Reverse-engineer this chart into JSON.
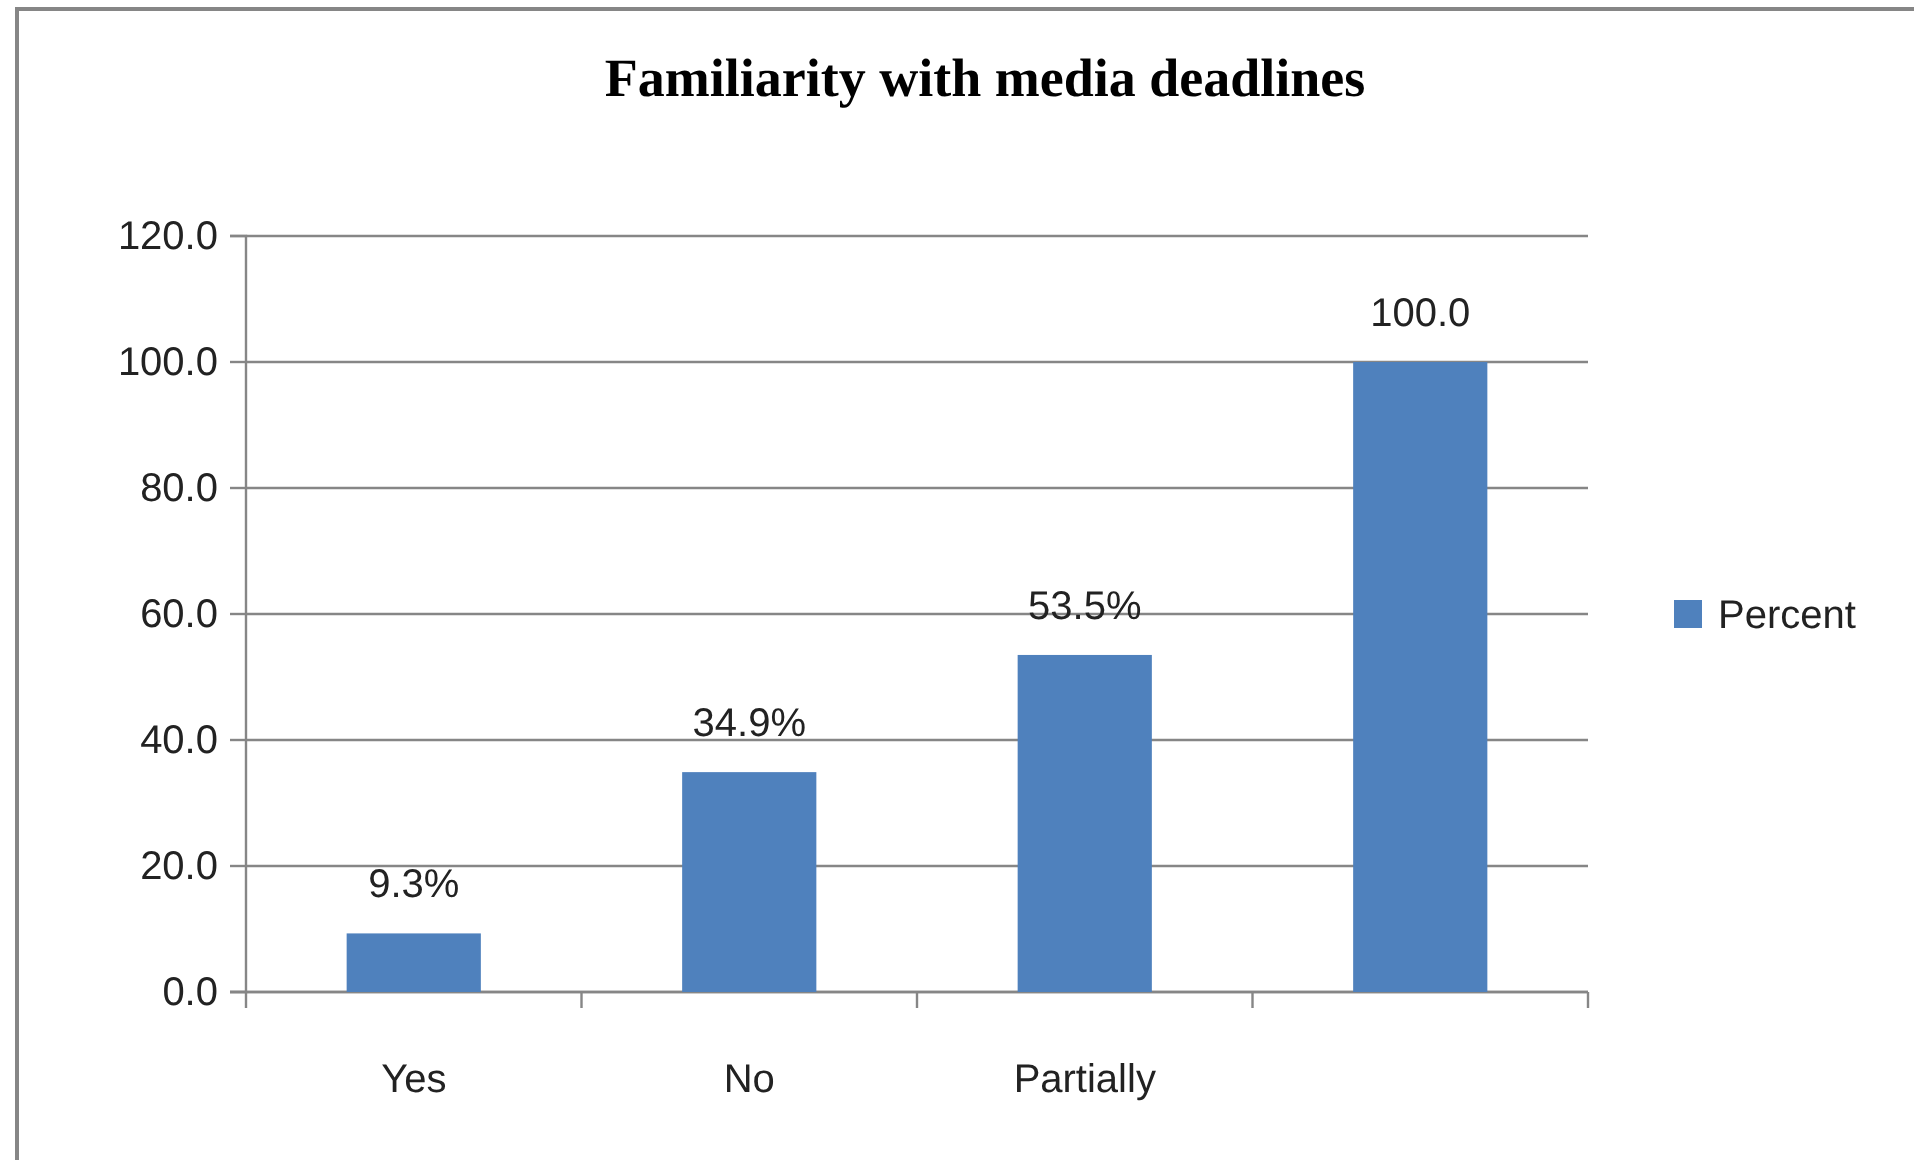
{
  "chart_data": {
    "type": "bar",
    "title": "Familiarity with media deadlines",
    "categories": [
      "Yes",
      "No",
      "Partially",
      null
    ],
    "series": [
      {
        "name": "Percent",
        "color": "#4f81bd",
        "values": [
          9.3,
          34.9,
          53.5,
          100
        ],
        "value_labels": [
          "9.3%",
          "34.9%",
          "53.5%",
          "100.0"
        ]
      }
    ],
    "ylim": [
      0,
      120
    ],
    "yticks": [
      {
        "value": 0,
        "label": "0.0"
      },
      {
        "value": 20,
        "label": "20.0"
      },
      {
        "value": 40,
        "label": "40.0"
      },
      {
        "value": 60,
        "label": "60.0"
      },
      {
        "value": 80,
        "label": "80.0"
      },
      {
        "value": 100,
        "label": "100.0"
      },
      {
        "value": 120,
        "label": "120.0"
      }
    ],
    "grid": "y",
    "legend": "right"
  }
}
